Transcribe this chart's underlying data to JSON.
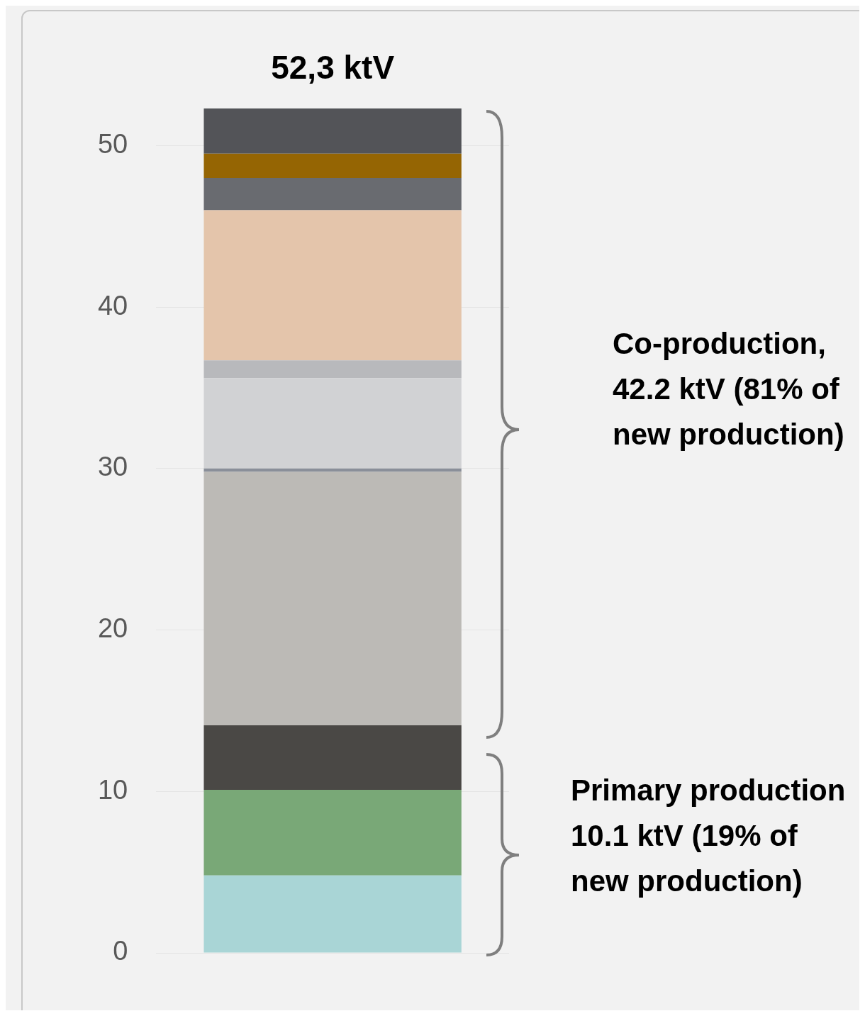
{
  "chart_data": {
    "type": "bar",
    "stacked": true,
    "categories": [
      null
    ],
    "series": [
      {
        "color": "#a9d5d6",
        "values": [
          4.8
        ]
      },
      {
        "color": "#79a877",
        "values": [
          5.3
        ]
      },
      {
        "color": "#4a4845",
        "values": [
          4.0
        ]
      },
      {
        "color": "#bcbab6",
        "values": [
          15.7
        ]
      },
      {
        "color": "#8a8f99",
        "values": [
          0.2
        ]
      },
      {
        "color": "#d1d2d4",
        "values": [
          5.6
        ]
      },
      {
        "color": "#b8b9bc",
        "values": [
          1.1
        ]
      },
      {
        "color": "#e4c5ab",
        "values": [
          9.3
        ]
      },
      {
        "color": "#696b70",
        "values": [
          2.0
        ]
      },
      {
        "color": "#956503",
        "values": [
          1.5
        ]
      },
      {
        "color": "#535458",
        "values": [
          2.8
        ]
      }
    ],
    "totals": [
      "52,3 ktV"
    ],
    "ylim": [
      0,
      52.3
    ],
    "yticks": [
      0,
      10,
      20,
      30,
      40,
      50
    ],
    "grid": "y",
    "legend": false,
    "tick_labels": "y",
    "annotations": [
      "Co-production, 42.2 ktV (81% of new production)",
      "Primary production 10.1 ktV (19% of new production)"
    ]
  }
}
